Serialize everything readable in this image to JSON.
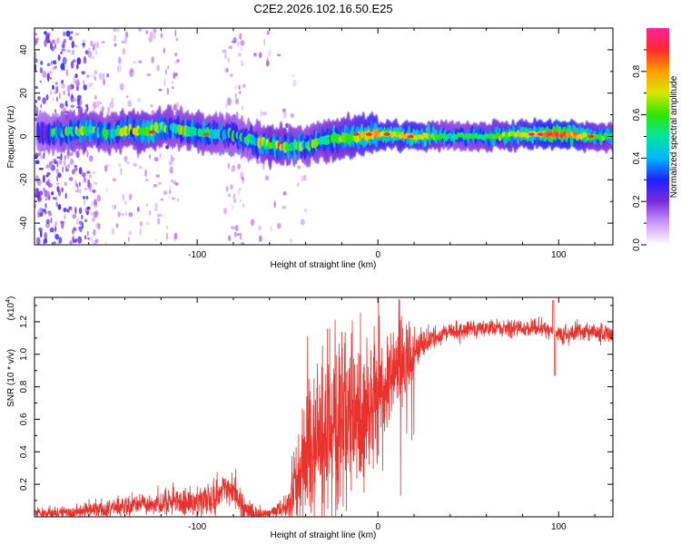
{
  "title": "C2E2.2026.102.16.50.E25",
  "chart_data": [
    {
      "type": "heatmap",
      "name": "spectrogram",
      "xlabel": "Height of straight line (km)",
      "ylabel": "Frequency (Hz)",
      "xlim": [
        -190,
        130
      ],
      "ylim": [
        -50,
        50
      ],
      "xticks": [
        -100,
        0,
        100
      ],
      "xtick_labels": [
        "-100",
        "0",
        "100"
      ],
      "yticks": [
        -40,
        -20,
        0,
        20,
        40
      ],
      "ytick_labels": [
        "-40",
        "-20",
        "0",
        "20",
        "40"
      ],
      "colorbar": {
        "label": "Normalized spectral amplitude",
        "range": [
          0.0,
          1.0
        ],
        "ticks": [
          0.0,
          0.2,
          0.4,
          0.6,
          0.8
        ],
        "tick_labels": [
          "0.0",
          "0.2",
          "0.4",
          "0.6",
          "0.8"
        ],
        "colormap": [
          "#ffffff",
          "#cc99ff",
          "#7a2bd9",
          "#1e20ff",
          "#00b7ff",
          "#00e6a0",
          "#2ee600",
          "#d8e600",
          "#ff9e00",
          "#ff2a2a",
          "#ff1f9e"
        ]
      },
      "center_track": {
        "x": [
          -185,
          -170,
          -160,
          -150,
          -140,
          -130,
          -120,
          -110,
          -100,
          -90,
          -80,
          -70,
          -60,
          -50,
          -40,
          -30,
          -20,
          -10,
          0,
          10,
          20,
          40,
          60,
          80,
          100,
          120,
          130
        ],
        "y": [
          2,
          2,
          3,
          1,
          3,
          2,
          4,
          3,
          2,
          1,
          1,
          -2,
          -4,
          -5,
          -4,
          -2,
          -1,
          0,
          1,
          1,
          0,
          0,
          0,
          1,
          1,
          0,
          0
        ],
        "amplitude": [
          0.4,
          0.5,
          0.55,
          0.5,
          0.55,
          0.6,
          0.55,
          0.5,
          0.55,
          0.5,
          0.45,
          0.45,
          0.6,
          0.55,
          0.5,
          0.55,
          0.6,
          0.7,
          0.75,
          0.7,
          0.75,
          0.5,
          0.55,
          0.7,
          0.9,
          0.6,
          0.55
        ]
      }
    },
    {
      "type": "line",
      "name": "snr",
      "xlabel": "Height of straight line (km)",
      "ylabel": "SNR (10 * v/v)",
      "multiplier_label": "(x10",
      "multiplier_exponent": "4",
      "xlim": [
        -190,
        130
      ],
      "ylim": [
        0,
        1.35
      ],
      "xticks": [
        -100,
        0,
        100
      ],
      "xtick_labels": [
        "-100",
        "0",
        "100"
      ],
      "yticks": [
        0.2,
        0.4,
        0.6,
        0.8,
        1.0,
        1.2
      ],
      "ytick_labels": [
        "0.2",
        "0.4",
        "0.6",
        "0.8",
        "1.0",
        "1.2"
      ],
      "color": "#e8322d",
      "envelope": {
        "x": [
          -190,
          -170,
          -150,
          -130,
          -110,
          -90,
          -85,
          -80,
          -75,
          -70,
          -60,
          -50,
          -45,
          -40,
          -35,
          -30,
          -25,
          -20,
          -15,
          -10,
          -5,
          0,
          5,
          10,
          15,
          20,
          25,
          30,
          40,
          50,
          60,
          80,
          90,
          95,
          100,
          105,
          110,
          120,
          130
        ],
        "y": [
          0.02,
          0.02,
          0.05,
          0.07,
          0.08,
          0.12,
          0.17,
          0.18,
          0.04,
          0.02,
          0.02,
          0.06,
          0.2,
          0.3,
          0.4,
          0.5,
          0.55,
          0.6,
          0.62,
          0.66,
          0.68,
          0.7,
          0.78,
          0.86,
          0.93,
          1.0,
          1.07,
          1.1,
          1.14,
          1.15,
          1.16,
          1.16,
          1.17,
          1.14,
          1.12,
          1.13,
          1.14,
          1.14,
          1.12
        ]
      },
      "noise_amplitude": {
        "x": [
          -190,
          -130,
          -90,
          -75,
          -60,
          -50,
          -40,
          -20,
          0,
          20,
          30,
          60,
          130
        ],
        "y": [
          0.015,
          0.03,
          0.05,
          0.05,
          0.01,
          0.05,
          0.22,
          0.3,
          0.22,
          0.07,
          0.03,
          0.025,
          0.03
        ]
      },
      "features": [
        {
          "x": 97,
          "y": 1.33,
          "label": "spike"
        },
        {
          "x": 98,
          "y": 0.87,
          "label": "dip"
        }
      ]
    }
  ]
}
